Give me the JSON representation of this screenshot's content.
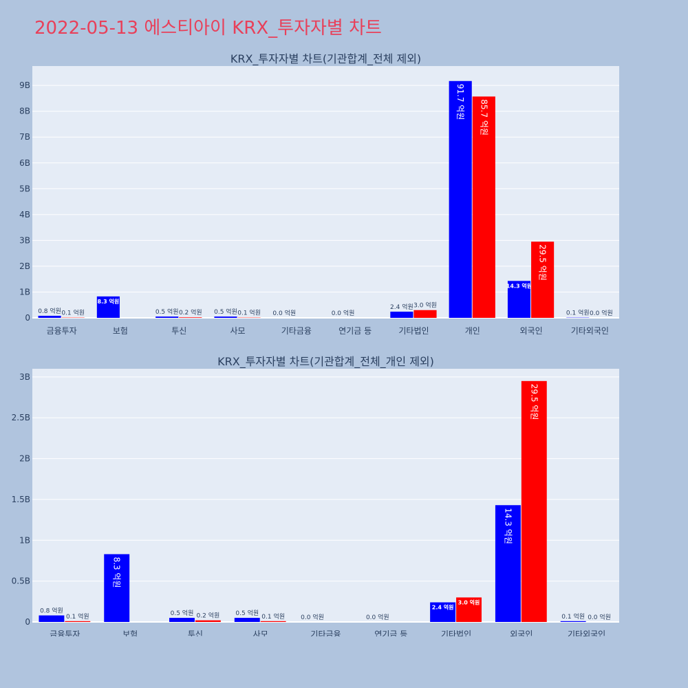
{
  "title": "2022-05-13 에스티아이 KRX_투자자별 차트",
  "colors": {
    "buy": "#0000ff",
    "sell": "#ff0000",
    "plot_bg": "#e5ecf6",
    "page_bg": "#b0c4de",
    "title": "#e8405a"
  },
  "chart_data": [
    {
      "type": "bar",
      "title": "KRX_투자자별 차트(기관합계_전체 제외)",
      "categories": [
        "금융투자",
        "보험",
        "투신",
        "사모",
        "기타금융",
        "연기금 등",
        "기타법인",
        "개인",
        "외국인",
        "기타외국인"
      ],
      "series": [
        {
          "values": [
            0.08,
            0.83,
            0.05,
            0.05,
            0.0,
            0.0,
            0.24,
            9.17,
            1.43,
            0.01
          ],
          "labels": [
            "0.8 억원",
            "8.3 억원",
            "0.5 억원",
            "0.5 억원",
            "0.0 억원",
            "0.0 억원",
            "2.4 억원",
            "91.7 억원",
            "14.3 억원",
            "0.1 억원"
          ]
        },
        {
          "values": [
            0.01,
            null,
            0.02,
            0.01,
            null,
            null,
            0.3,
            8.57,
            2.95,
            0.0
          ],
          "labels": [
            "0.1 억원",
            "",
            "0.2 억원",
            "0.1 억원",
            "",
            "",
            "3.0 억원",
            "85.7 억원",
            "29.5 억원",
            "0.0 억원"
          ]
        }
      ],
      "yticks": [
        0,
        1,
        2,
        3,
        4,
        5,
        6,
        7,
        8,
        9
      ],
      "ytick_labels": [
        "0",
        "1B",
        "2B",
        "3B",
        "4B",
        "5B",
        "6B",
        "7B",
        "8B",
        "9B"
      ],
      "ylim": [
        0,
        9.75
      ],
      "grid": true
    },
    {
      "type": "bar",
      "title": "KRX_투자자별 차트(기관합계_전체_개인 제외)",
      "categories": [
        "금융투자",
        "보험",
        "투신",
        "사모",
        "기타금융",
        "연기금 등",
        "기타법인",
        "외국인",
        "기타외국인"
      ],
      "series": [
        {
          "values": [
            0.08,
            0.83,
            0.05,
            0.05,
            0.0,
            0.0,
            0.24,
            1.43,
            0.01
          ],
          "labels": [
            "0.8 억원",
            "8.3 억원",
            "0.5 억원",
            "0.5 억원",
            "0.0 억원",
            "0.0 억원",
            "2.4 억원",
            "14.3 억원",
            "0.1 억원"
          ]
        },
        {
          "values": [
            0.01,
            null,
            0.02,
            0.01,
            null,
            null,
            0.3,
            2.95,
            0.0
          ],
          "labels": [
            "0.1 억원",
            "",
            "0.2 억원",
            "0.1 억원",
            "",
            "",
            "3.0 억원",
            "29.5 억원",
            "0.0 억원"
          ]
        }
      ],
      "yticks": [
        0,
        0.5,
        1,
        1.5,
        2,
        2.5,
        3
      ],
      "ytick_labels": [
        "0",
        "0.5B",
        "1B",
        "1.5B",
        "2B",
        "2.5B",
        "3B"
      ],
      "ylim": [
        0,
        3.1
      ],
      "grid": true
    }
  ]
}
